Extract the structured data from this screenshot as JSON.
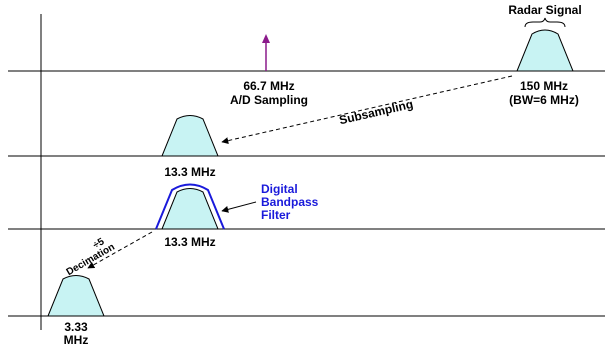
{
  "colors": {
    "spectrum_fill": "#c8f3f3",
    "filter_outline": "#1a1adb",
    "marker": "#8b1a8b",
    "line": "#000000"
  },
  "labels": {
    "radar_signal": "Radar Signal",
    "sampling_freq": "66.7 MHz",
    "sampling_desc": "A/D Sampling",
    "rf_freq": "150 MHz",
    "rf_bw": "(BW=6 MHz)",
    "subsampling": "Subsampling",
    "if_freq_1": "13.3 MHz",
    "filter_line1": "Digital",
    "filter_line2": "Bandpass",
    "filter_line3": "Filter",
    "if_freq_2": "13.3 MHz",
    "decim_factor": "÷5",
    "decimation": "Decimation",
    "bb_freq_line1": "3.33",
    "bb_freq_line2": "MHz"
  }
}
